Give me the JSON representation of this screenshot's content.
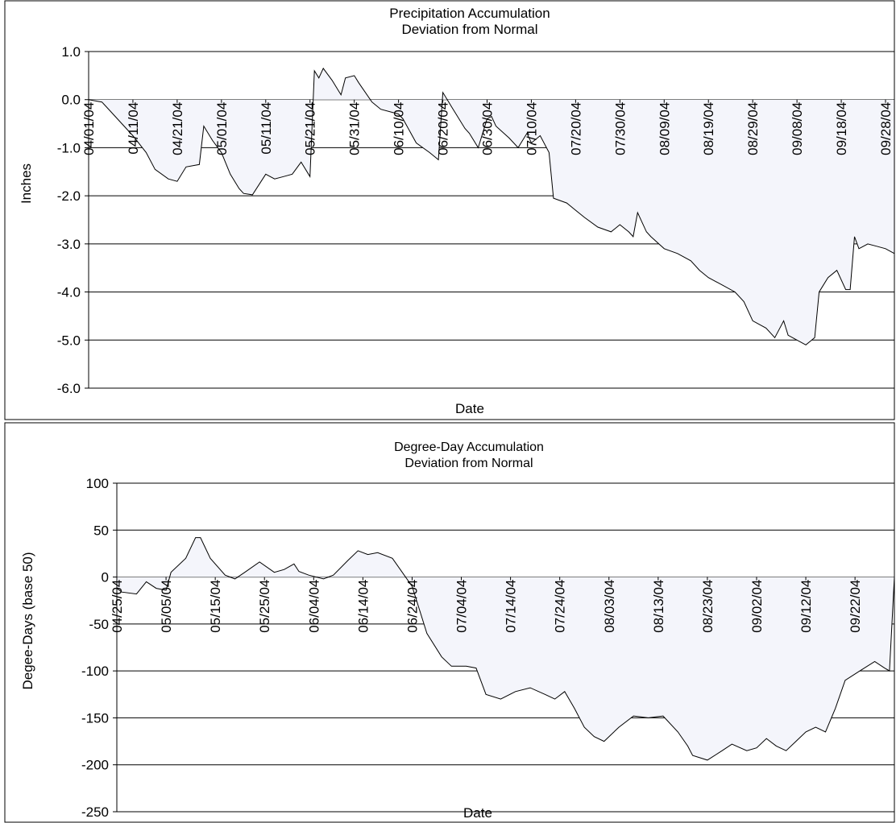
{
  "chart_data": [
    {
      "type": "area",
      "title": "Precipitation Accumulation",
      "subtitle": "Deviation from Normal",
      "xlabel": "Date",
      "ylabel": "Inches",
      "ylim": [
        -6.0,
        1.0
      ],
      "yticks": [
        "1.0",
        "0.0",
        "-1.0",
        "-2.0",
        "-3.0",
        "-4.0",
        "-5.0",
        "-6.0"
      ],
      "xlim": [
        "04/01/04",
        "09/30/04"
      ],
      "xticks": [
        "04/01/04",
        "04/11/04",
        "04/21/04",
        "05/01/04",
        "05/11/04",
        "05/21/04",
        "05/31/04",
        "06/10/04",
        "06/20/04",
        "06/30/04",
        "07/10/04",
        "07/20/04",
        "07/30/04",
        "08/09/04",
        "08/19/04",
        "08/29/04",
        "09/08/04",
        "09/18/04",
        "09/28/04"
      ],
      "grid": "horizontal",
      "fill_color": "#f4f5fb",
      "line_color": "#000000",
      "x": [
        "04/01/04",
        "04/04/04",
        "04/06/04",
        "04/08/04",
        "04/11/04",
        "04/14/04",
        "04/16/04",
        "04/19/04",
        "04/21/04",
        "04/23/04",
        "04/26/04",
        "04/27/04",
        "04/29/04",
        "05/01/04",
        "05/03/04",
        "05/05/04",
        "05/06/04",
        "05/08/04",
        "05/11/04",
        "05/13/04",
        "05/15/04",
        "05/17/04",
        "05/19/04",
        "05/21/04",
        "05/22/04",
        "05/23/04",
        "05/24/04",
        "05/26/04",
        "05/28/04",
        "05/29/04",
        "05/31/04",
        "06/01/04",
        "06/04/04",
        "06/06/04",
        "06/10/04",
        "06/11/04",
        "06/14/04",
        "06/17/04",
        "06/19/04",
        "06/20/04",
        "06/22/04",
        "06/25/04",
        "06/26/04",
        "06/28/04",
        "06/30/04",
        "07/01/04",
        "07/02/04",
        "07/05/04",
        "07/07/04",
        "07/09/04",
        "07/10/04",
        "07/12/04",
        "07/14/04",
        "07/15/04",
        "07/18/04",
        "07/20/04",
        "07/22/04",
        "07/25/04",
        "07/28/04",
        "07/30/04",
        "08/01/04",
        "08/02/04",
        "08/03/04",
        "08/05/04",
        "08/06/04",
        "08/09/04",
        "08/12/04",
        "08/15/04",
        "08/17/04",
        "08/19/04",
        "08/22/04",
        "08/25/04",
        "08/27/04",
        "08/29/04",
        "09/01/04",
        "09/03/04",
        "09/05/04",
        "09/06/04",
        "09/08/04",
        "09/10/04",
        "09/12/04",
        "09/13/04",
        "09/15/04",
        "09/17/04",
        "09/19/04",
        "09/20/04",
        "09/21/04",
        "09/22/04",
        "09/24/04",
        "09/26/04",
        "09/28/04",
        "09/30/04"
      ],
      "values": [
        0.0,
        -0.05,
        -0.25,
        -0.45,
        -0.75,
        -1.1,
        -1.45,
        -1.65,
        -1.7,
        -1.4,
        -1.35,
        -0.55,
        -0.85,
        -1.1,
        -1.55,
        -1.85,
        -1.95,
        -1.98,
        -1.55,
        -1.65,
        -1.6,
        -1.55,
        -1.3,
        -1.6,
        0.6,
        0.45,
        0.65,
        0.4,
        0.1,
        0.45,
        0.5,
        0.35,
        -0.05,
        -0.2,
        -0.3,
        -0.4,
        -0.9,
        -1.1,
        -1.25,
        0.15,
        -0.15,
        -0.6,
        -0.7,
        -1.0,
        -0.4,
        -0.35,
        -0.55,
        -0.8,
        -1.0,
        -0.7,
        -0.9,
        -0.75,
        -1.1,
        -2.05,
        -2.15,
        -2.3,
        -2.45,
        -2.65,
        -2.75,
        -2.6,
        -2.75,
        -2.85,
        -2.35,
        -2.75,
        -2.85,
        -3.1,
        -3.2,
        -3.35,
        -3.55,
        -3.7,
        -3.85,
        -4.0,
        -4.2,
        -4.6,
        -4.75,
        -4.95,
        -4.6,
        -4.9,
        -5.0,
        -5.1,
        -4.95,
        -4.0,
        -3.7,
        -3.55,
        -3.95,
        -3.95,
        -2.85,
        -3.1,
        -3.0,
        -3.05,
        -3.1,
        -3.2
      ]
    },
    {
      "type": "area",
      "title": "Degree-Day Accumulation",
      "subtitle": "Deviation from Normal",
      "xlabel": "Date",
      "ylabel": "Degee-Days (base 50)",
      "ylim": [
        -250,
        100
      ],
      "yticks": [
        "100",
        "50",
        "0",
        "-50",
        "-100",
        "-150",
        "-200",
        "-250"
      ],
      "xlim": [
        "04/25/04",
        "09/30/04"
      ],
      "xticks": [
        "04/25/04",
        "05/05/04",
        "05/15/04",
        "05/25/04",
        "06/04/04",
        "06/14/04",
        "06/24/04",
        "07/04/04",
        "07/14/04",
        "07/24/04",
        "08/03/04",
        "08/13/04",
        "08/23/04",
        "09/02/04",
        "09/12/04",
        "09/22/04"
      ],
      "grid": "horizontal",
      "fill_color": "#f4f5fb",
      "line_color": "#000000",
      "x": [
        "04/25/04",
        "04/26/04",
        "04/29/04",
        "05/01/04",
        "05/03/04",
        "05/05/04",
        "05/06/04",
        "05/09/04",
        "05/11/04",
        "05/12/04",
        "05/14/04",
        "05/17/04",
        "05/19/04",
        "05/21/04",
        "05/24/04",
        "05/27/04",
        "05/29/04",
        "05/31/04",
        "06/01/04",
        "06/03/04",
        "06/06/04",
        "06/08/04",
        "06/11/04",
        "06/13/04",
        "06/15/04",
        "06/17/04",
        "06/20/04",
        "06/24/04",
        "06/27/04",
        "06/30/04",
        "07/02/04",
        "07/05/04",
        "07/07/04",
        "07/09/04",
        "07/12/04",
        "07/15/04",
        "07/18/04",
        "07/21/04",
        "07/23/04",
        "07/25/04",
        "07/27/04",
        "07/29/04",
        "07/31/04",
        "08/02/04",
        "08/05/04",
        "08/08/04",
        "08/11/04",
        "08/14/04",
        "08/17/04",
        "08/19/04",
        "08/20/04",
        "08/23/04",
        "08/26/04",
        "08/28/04",
        "08/31/04",
        "09/02/04",
        "09/04/04",
        "09/06/04",
        "09/08/04",
        "09/10/04",
        "09/12/04",
        "09/14/04",
        "09/16/04",
        "09/18/04",
        "09/20/04",
        "09/23/04",
        "09/26/04",
        "09/28/04",
        "09/29/04",
        "09/30/04"
      ],
      "values": [
        -12,
        -16,
        -18,
        -5,
        -12,
        -14,
        5,
        20,
        42,
        42,
        20,
        2,
        -2,
        5,
        16,
        5,
        8,
        14,
        6,
        2,
        -2,
        2,
        18,
        28,
        24,
        26,
        20,
        -10,
        -60,
        -85,
        -95,
        -95,
        -97,
        -125,
        -130,
        -122,
        -118,
        -125,
        -130,
        -122,
        -140,
        -160,
        -170,
        -175,
        -160,
        -148,
        -150,
        -148,
        -165,
        -180,
        -190,
        -195,
        -185,
        -178,
        -185,
        -182,
        -172,
        -180,
        -185,
        -175,
        -165,
        -160,
        -165,
        -140,
        -110,
        -100,
        -90,
        -97,
        -100,
        0
      ]
    }
  ]
}
